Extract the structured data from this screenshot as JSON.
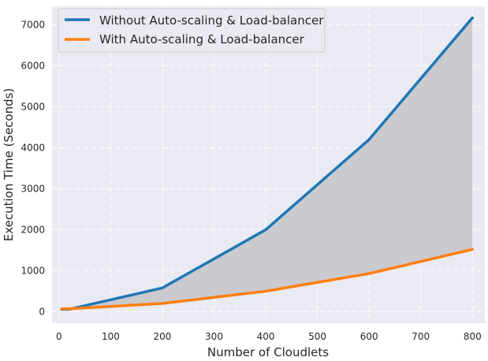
{
  "chart_data": {
    "type": "line",
    "title": "",
    "xlabel": "Number of Cloudlets",
    "ylabel": "Execution Time (Seconds)",
    "xlim": [
      -13.5,
      824
    ],
    "ylim": [
      -280,
      7450
    ],
    "xticks": [
      0,
      100,
      200,
      300,
      400,
      500,
      600,
      700,
      800
    ],
    "yticks": [
      0,
      1000,
      2000,
      3000,
      4000,
      5000,
      6000,
      7000
    ],
    "grid": true,
    "legend_position": "top-left",
    "fill_between": {
      "series": [
        0,
        1
      ],
      "color": "#c8c8cc"
    },
    "series": [
      {
        "name": "Without Auto-scaling & Load-balancer",
        "color": "#1f77b4",
        "x": [
          5,
          20,
          200,
          400,
          600,
          800
        ],
        "y": [
          60,
          60,
          580,
          2000,
          4200,
          7170
        ]
      },
      {
        "name": "With Auto-scaling & Load-balancer",
        "color": "#ff7f0e",
        "x": [
          5,
          20,
          200,
          400,
          600,
          800
        ],
        "y": [
          70,
          70,
          200,
          500,
          930,
          1520
        ]
      }
    ]
  }
}
